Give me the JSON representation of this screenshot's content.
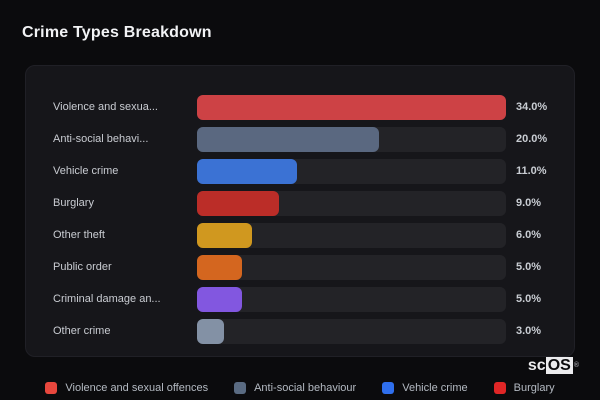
{
  "title": "Crime Types Breakdown",
  "chart_data": {
    "type": "bar",
    "orientation": "horizontal",
    "title": "Crime Types Breakdown",
    "xlim": [
      0,
      34
    ],
    "grid": false,
    "legend_position": "bottom",
    "categories": [
      "Violence and sexua...",
      "Anti-social behavi...",
      "Vehicle crime",
      "Burglary",
      "Other theft",
      "Public order",
      "Criminal damage an...",
      "Other crime"
    ],
    "values": [
      34.0,
      20.0,
      11.0,
      9.0,
      6.0,
      5.0,
      5.0,
      3.0
    ],
    "value_labels": [
      "34.0%",
      "20.0%",
      "11.0%",
      "9.0%",
      "6.0%",
      "5.0%",
      "5.0%",
      "3.0%"
    ],
    "bar_colors": [
      "#cd4245",
      "#5a6880",
      "#3b72d4",
      "#bb2d28",
      "#d0981f",
      "#d4661f",
      "#8257e0",
      "#8391a5"
    ],
    "track_color": "#232327",
    "legend": [
      {
        "label": "Violence and sexual offences",
        "color": "#e8473d"
      },
      {
        "label": "Anti-social behaviour",
        "color": "#5a6b82"
      },
      {
        "label": "Vehicle crime",
        "color": "#2f6fed"
      },
      {
        "label": "Burglary",
        "color": "#e02626"
      }
    ]
  },
  "branding": {
    "prefix": "sc",
    "suffix": "OS",
    "registered": "®"
  },
  "colors": {
    "page_bg": "#0b0b0d",
    "panel_bg": "#16161a",
    "title_text": "#f2f3f5",
    "category_text": "#c9ccd2",
    "value_text": "#c9cdd3",
    "legend_text": "#b4bac2"
  }
}
